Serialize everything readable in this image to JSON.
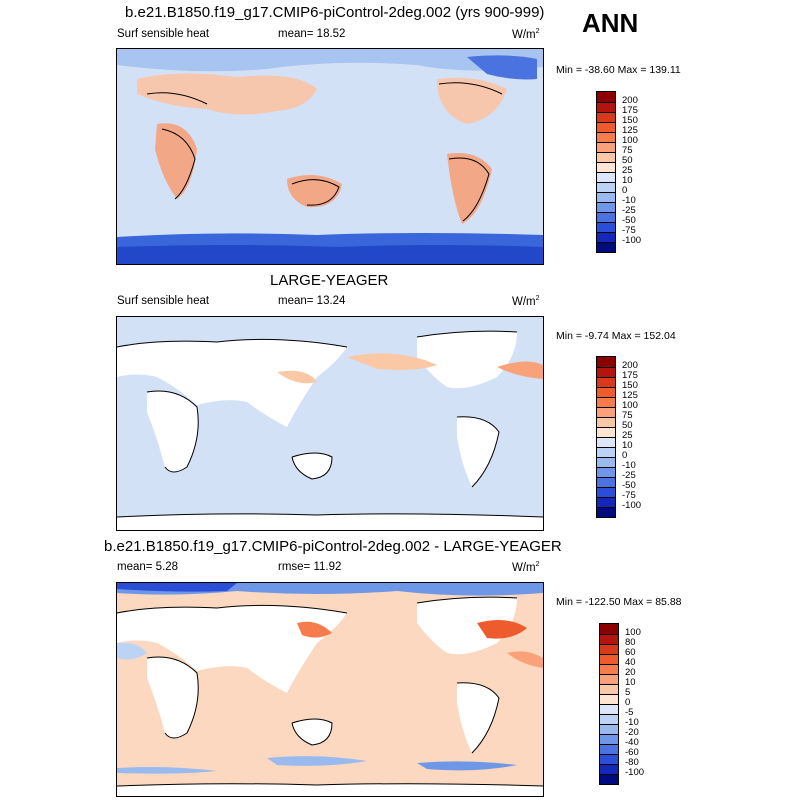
{
  "season": "ANN",
  "panels": [
    {
      "title": "b.e21.B1850.f19_g17.CMIP6-piControl-2deg.002 (yrs 900-999)",
      "left_label": "Surf sensible heat",
      "center_label": "mean=  18.52",
      "units": "W/m",
      "units_sup": "2",
      "minmax": "Min = -38.60 Max = 139.11",
      "colorbar": {
        "colors": [
          "#8b0000",
          "#b3140d",
          "#d63a1a",
          "#ee5b2d",
          "#f67c4e",
          "#f9a27a",
          "#fbc8a6",
          "#fde5d2",
          "#dbe6f8",
          "#bdd3f5",
          "#99baef",
          "#6f97e8",
          "#4a73e0",
          "#2a4ed6",
          "#1428b8",
          "#000c7e"
        ],
        "labels": [
          "200",
          "175",
          "150",
          "125",
          "100",
          "75",
          "50",
          "25",
          "10",
          "0",
          "-10",
          "-25",
          "-50",
          "-75",
          "-100"
        ]
      }
    },
    {
      "title": "LARGE-YEAGER",
      "left_label": "Surf sensible heat",
      "center_label": "mean=  13.24",
      "units": "W/m",
      "units_sup": "2",
      "minmax": "Min =  -9.74 Max = 152.04",
      "colorbar": {
        "colors": [
          "#8b0000",
          "#b3140d",
          "#d63a1a",
          "#ee5b2d",
          "#f67c4e",
          "#f9a27a",
          "#fbc8a6",
          "#fde5d2",
          "#dbe6f8",
          "#bdd3f5",
          "#99baef",
          "#6f97e8",
          "#4a73e0",
          "#2a4ed6",
          "#1428b8",
          "#000c7e"
        ],
        "labels": [
          "200",
          "175",
          "150",
          "125",
          "100",
          "75",
          "50",
          "25",
          "10",
          "0",
          "-10",
          "-25",
          "-50",
          "-75",
          "-100"
        ]
      }
    },
    {
      "title": "b.e21.B1850.f19_g17.CMIP6-piControl-2deg.002 - LARGE-YEAGER",
      "left_label": "mean=   5.28",
      "center_label": "rmse=  11.92",
      "units": "W/m",
      "units_sup": "2",
      "minmax": "Min = -122.50 Max =  85.88",
      "colorbar": {
        "colors": [
          "#8b0000",
          "#b3140d",
          "#d63a1a",
          "#ee5b2d",
          "#f67c4e",
          "#f9a27a",
          "#fbc8a6",
          "#fde5d2",
          "#dbe6f8",
          "#bdd3f5",
          "#99baef",
          "#6f97e8",
          "#4a73e0",
          "#2a4ed6",
          "#1428b8",
          "#000c7e"
        ],
        "labels": [
          "100",
          "80",
          "60",
          "40",
          "20",
          "10",
          "5",
          "0",
          "-5",
          "-10",
          "-20",
          "-40",
          "-60",
          "-80",
          "-100"
        ]
      }
    }
  ]
}
